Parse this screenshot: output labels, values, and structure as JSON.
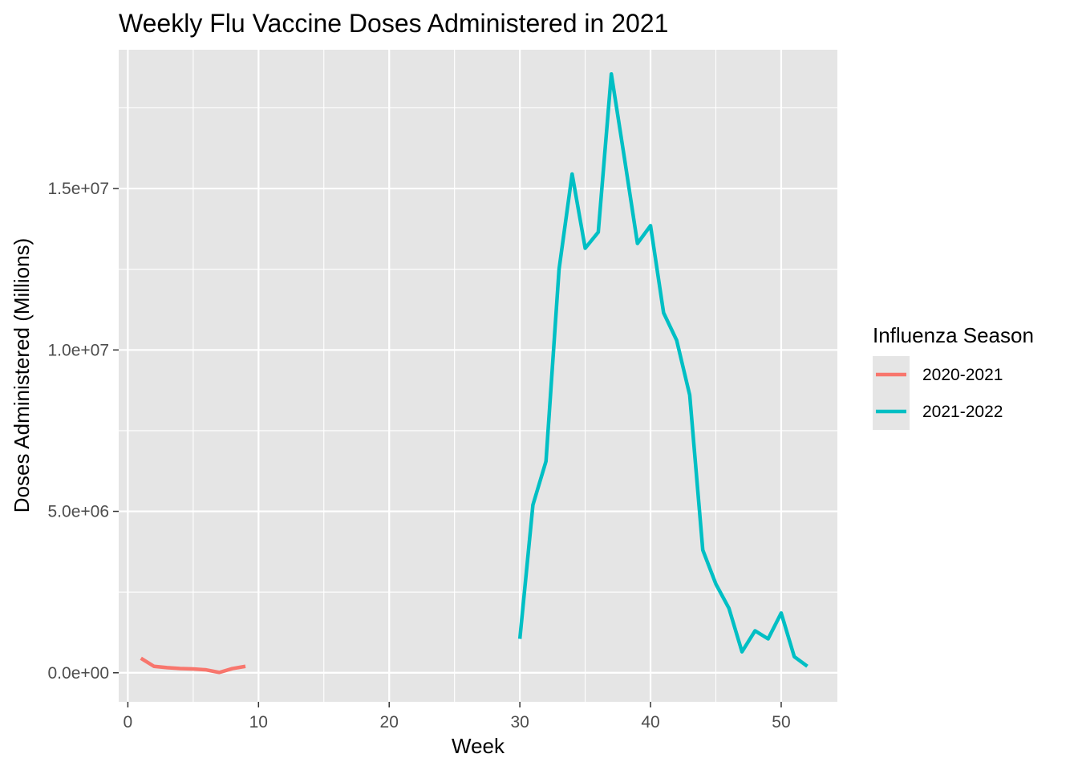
{
  "chart_data": {
    "type": "line",
    "title": "Weekly Flu Vaccine Doses Administered in 2021",
    "xlabel": "Week",
    "ylabel": "Doses Administered (Millions)",
    "xlim": [
      -0.7,
      54.3
    ],
    "ylim": [
      -900000,
      19300000
    ],
    "x_ticks": [
      0,
      10,
      20,
      30,
      40,
      50
    ],
    "x_tick_labels": [
      "0",
      "10",
      "20",
      "30",
      "40",
      "50"
    ],
    "y_ticks": [
      0,
      5000000,
      10000000,
      15000000
    ],
    "y_tick_labels": [
      "0.0e+00",
      "5.0e+06",
      "1.0e+07",
      "1.5e+07"
    ],
    "grid": true,
    "panel_background": "#e5e5e5",
    "grid_color": "#ffffff",
    "legend": {
      "title": "Influenza Season",
      "position": "right"
    },
    "series": [
      {
        "name": "2020-2021",
        "color": "#f8766d",
        "x": [
          1,
          2,
          3,
          4,
          5,
          6,
          7,
          8,
          9
        ],
        "y": [
          450000,
          200000,
          160000,
          130000,
          120000,
          90000,
          10000,
          130000,
          200000
        ]
      },
      {
        "name": "2021-2022",
        "color": "#00bfc4",
        "x": [
          30,
          31,
          32,
          33,
          34,
          35,
          36,
          37,
          38,
          39,
          40,
          41,
          42,
          43,
          44,
          45,
          46,
          47,
          48,
          49,
          50,
          51,
          52
        ],
        "y": [
          1050000,
          5200000,
          6550000,
          12500000,
          15450000,
          13150000,
          13650000,
          18550000,
          15950000,
          13300000,
          13850000,
          11150000,
          10300000,
          8600000,
          3800000,
          2750000,
          2000000,
          650000,
          1300000,
          1050000,
          1850000,
          500000,
          200000
        ]
      }
    ]
  }
}
